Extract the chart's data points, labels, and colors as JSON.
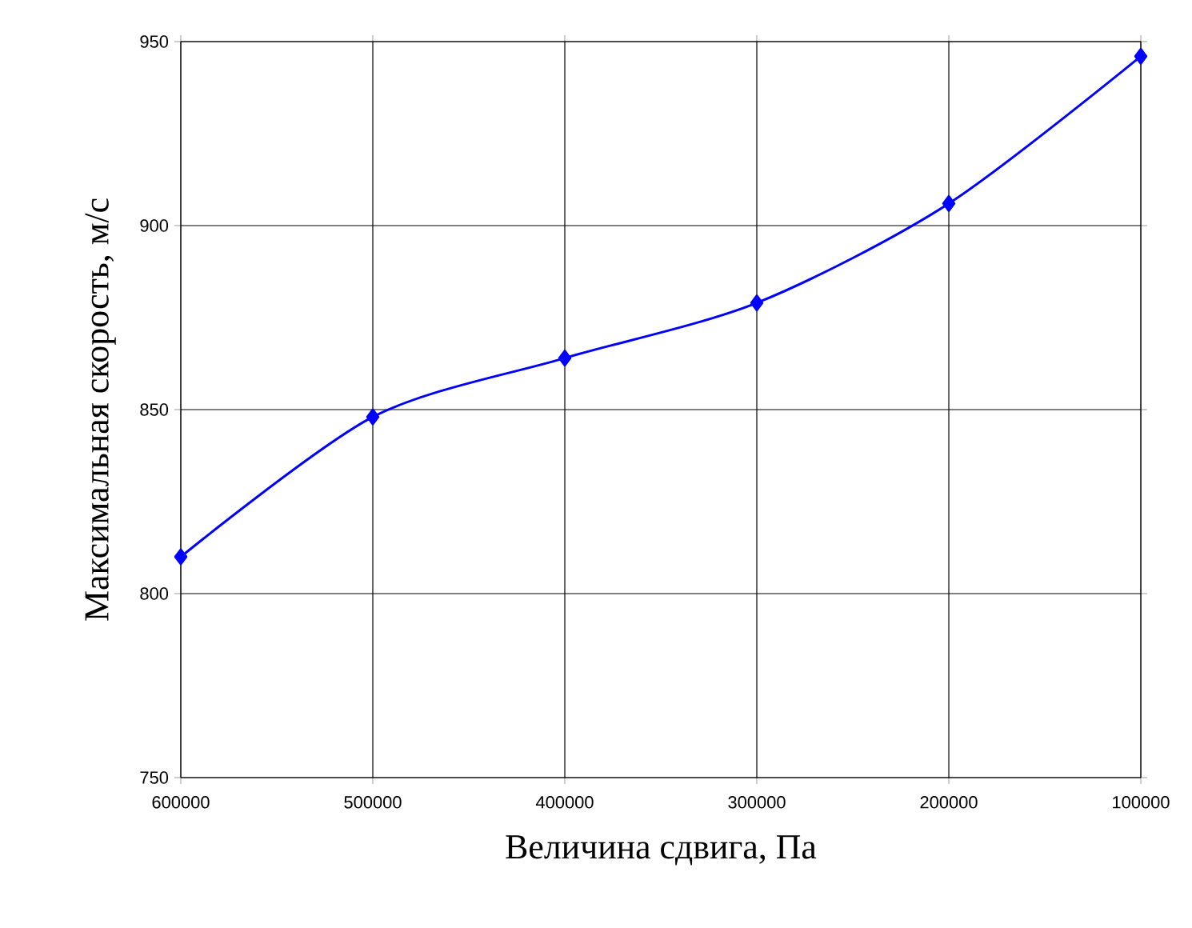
{
  "chart_data": {
    "type": "line",
    "xlabel": "Величина сдвига, Па",
    "ylabel": "Максимальная скорость, м/с",
    "categories": [
      "600000",
      "500000",
      "400000",
      "300000",
      "200000",
      "100000"
    ],
    "series": [
      {
        "color": "#0000ff",
        "values": [
          810,
          848,
          864,
          879,
          906,
          946
        ]
      }
    ],
    "ylim": [
      750,
      950
    ],
    "yticks": [
      750,
      800,
      850,
      900,
      950
    ],
    "grid": true,
    "marker": "diamond",
    "line_style": "solid"
  }
}
